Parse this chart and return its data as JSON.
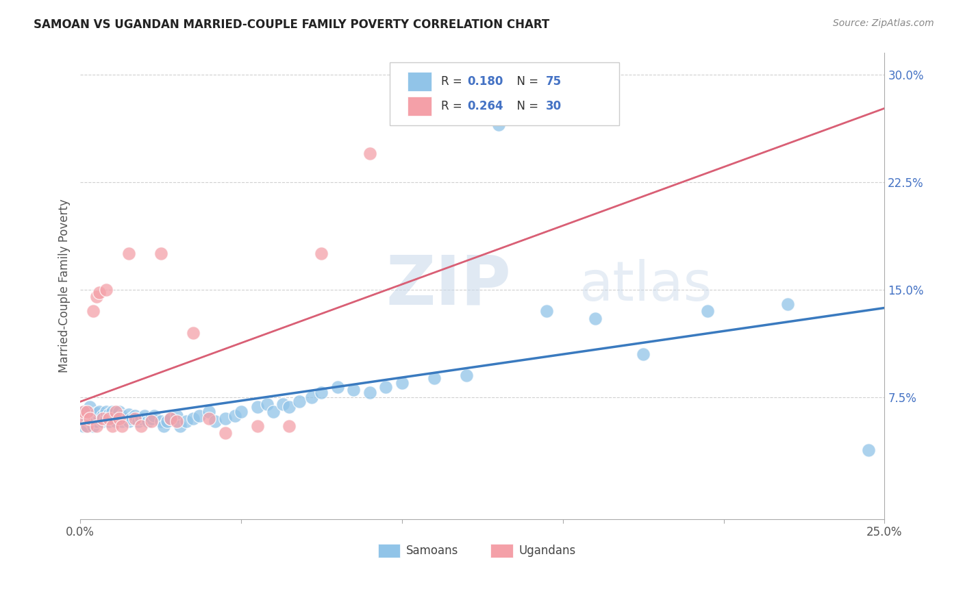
{
  "title": "SAMOAN VS UGANDAN MARRIED-COUPLE FAMILY POVERTY CORRELATION CHART",
  "source": "Source: ZipAtlas.com",
  "ylabel": "Married-Couple Family Poverty",
  "xlim": [
    0.0,
    0.25
  ],
  "ylim": [
    -0.01,
    0.315
  ],
  "xtick_pos": [
    0.0,
    0.05,
    0.1,
    0.15,
    0.2,
    0.25
  ],
  "xtick_labels": [
    "0.0%",
    "",
    "",
    "",
    "",
    "25.0%"
  ],
  "ytick_pos": [
    0.075,
    0.15,
    0.225,
    0.3
  ],
  "ytick_labels": [
    "7.5%",
    "15.0%",
    "22.5%",
    "30.0%"
  ],
  "samoan_color": "#91c4e8",
  "ugandan_color": "#f4a0a8",
  "samoan_line_color": "#3a7abf",
  "ugandan_line_color": "#d95f75",
  "R_samoan": 0.18,
  "N_samoan": 75,
  "R_ugandan": 0.264,
  "N_ugandan": 30,
  "background_color": "#ffffff",
  "grid_color": "#d0d0d0",
  "title_color": "#222222",
  "axis_label_color": "#555555",
  "tick_color": "#4472c4",
  "samoan_x": [
    0.001,
    0.001,
    0.001,
    0.002,
    0.002,
    0.002,
    0.003,
    0.003,
    0.003,
    0.004,
    0.004,
    0.005,
    0.005,
    0.006,
    0.006,
    0.007,
    0.007,
    0.008,
    0.008,
    0.009,
    0.009,
    0.01,
    0.01,
    0.011,
    0.012,
    0.012,
    0.013,
    0.013,
    0.014,
    0.015,
    0.015,
    0.016,
    0.017,
    0.018,
    0.019,
    0.02,
    0.021,
    0.022,
    0.023,
    0.025,
    0.026,
    0.027,
    0.028,
    0.03,
    0.031,
    0.033,
    0.035,
    0.037,
    0.04,
    0.042,
    0.045,
    0.048,
    0.05,
    0.055,
    0.058,
    0.06,
    0.063,
    0.065,
    0.068,
    0.072,
    0.075,
    0.08,
    0.085,
    0.09,
    0.095,
    0.1,
    0.11,
    0.12,
    0.13,
    0.145,
    0.16,
    0.175,
    0.195,
    0.22,
    0.245
  ],
  "samoan_y": [
    0.055,
    0.06,
    0.065,
    0.055,
    0.06,
    0.065,
    0.058,
    0.062,
    0.068,
    0.055,
    0.06,
    0.058,
    0.064,
    0.06,
    0.065,
    0.058,
    0.062,
    0.06,
    0.065,
    0.058,
    0.063,
    0.06,
    0.065,
    0.058,
    0.06,
    0.065,
    0.058,
    0.062,
    0.06,
    0.058,
    0.063,
    0.06,
    0.062,
    0.058,
    0.06,
    0.062,
    0.058,
    0.06,
    0.062,
    0.058,
    0.055,
    0.058,
    0.06,
    0.062,
    0.055,
    0.058,
    0.06,
    0.062,
    0.065,
    0.058,
    0.06,
    0.062,
    0.065,
    0.068,
    0.07,
    0.065,
    0.07,
    0.068,
    0.072,
    0.075,
    0.078,
    0.082,
    0.08,
    0.078,
    0.082,
    0.085,
    0.088,
    0.09,
    0.265,
    0.135,
    0.13,
    0.105,
    0.135,
    0.14,
    0.038
  ],
  "ugandan_x": [
    0.001,
    0.001,
    0.002,
    0.002,
    0.003,
    0.004,
    0.005,
    0.005,
    0.006,
    0.007,
    0.008,
    0.009,
    0.01,
    0.011,
    0.012,
    0.013,
    0.015,
    0.017,
    0.019,
    0.022,
    0.025,
    0.028,
    0.03,
    0.035,
    0.04,
    0.045,
    0.055,
    0.065,
    0.075,
    0.09
  ],
  "ugandan_y": [
    0.06,
    0.065,
    0.055,
    0.065,
    0.06,
    0.135,
    0.055,
    0.145,
    0.148,
    0.06,
    0.15,
    0.06,
    0.055,
    0.065,
    0.06,
    0.055,
    0.175,
    0.06,
    0.055,
    0.058,
    0.175,
    0.06,
    0.058,
    0.12,
    0.06,
    0.05,
    0.055,
    0.055,
    0.175,
    0.245
  ]
}
